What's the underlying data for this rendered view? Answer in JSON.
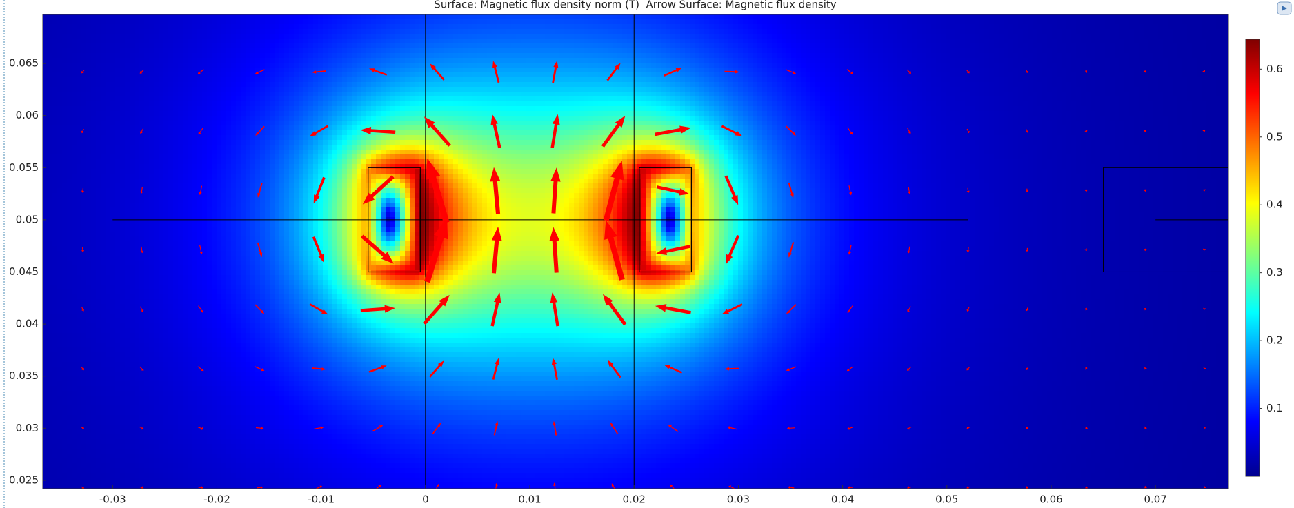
{
  "chart_data": {
    "type": "heatmap",
    "title": "Surface: Magnetic flux density norm (T)  Arrow Surface: Magnetic flux density",
    "xlim": [
      -0.0367,
      0.077
    ],
    "ylim": [
      0.0242,
      0.0697
    ],
    "xticks": [
      -0.03,
      -0.02,
      -0.01,
      0,
      0.01,
      0.02,
      0.03,
      0.04,
      0.05,
      0.06,
      0.07
    ],
    "yticks": [
      0.025,
      0.03,
      0.035,
      0.04,
      0.045,
      0.05,
      0.055,
      0.06,
      0.065
    ],
    "colormap": "rainbow",
    "colorbar": {
      "lim": [
        0,
        0.644
      ],
      "ticks": [
        0.1,
        0.2,
        0.3,
        0.4,
        0.5,
        0.6
      ]
    },
    "arrow_color": "#ff0000",
    "geometry": {
      "coils": [
        {
          "x": [
            -0.0055,
            -0.0005
          ],
          "y": [
            0.045,
            0.055
          ],
          "current": 1
        },
        {
          "x": [
            0.0205,
            0.0255
          ],
          "y": [
            0.045,
            0.055
          ],
          "current": -1
        }
      ],
      "rectangles": [
        {
          "x": [
            0.065,
            0.08
          ],
          "y": [
            0.045,
            0.055
          ]
        }
      ],
      "hlines": [
        {
          "x": [
            -0.03,
            0.052
          ],
          "y": 0.05
        },
        {
          "x": [
            0.07,
            0.08
          ],
          "y": 0.05
        }
      ],
      "vlines": [
        0,
        0.02
      ]
    }
  }
}
